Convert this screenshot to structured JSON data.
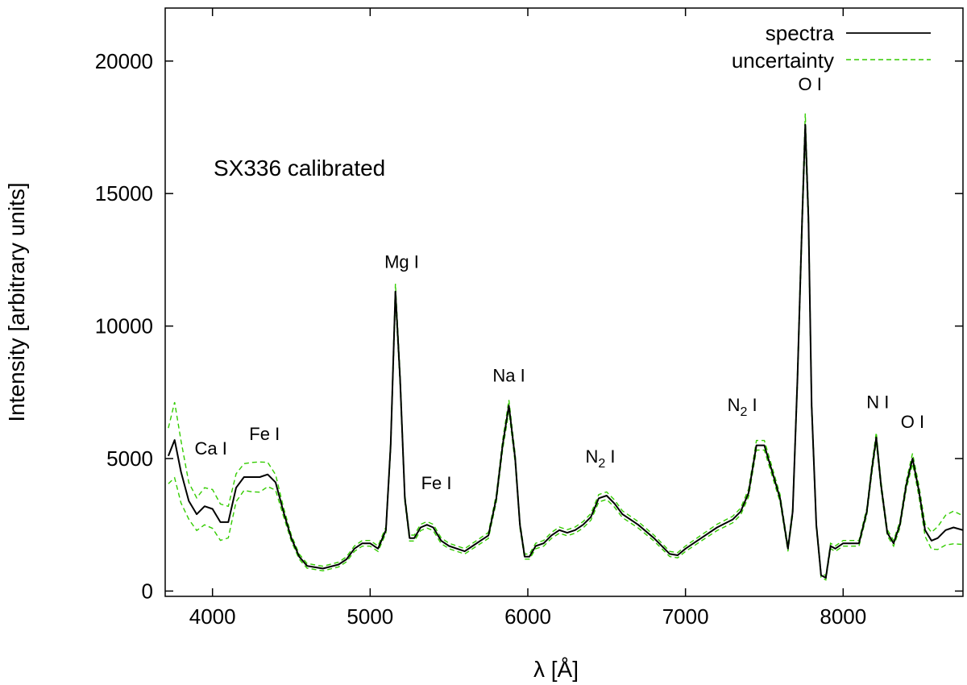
{
  "chart_data": {
    "type": "line",
    "title": "SX336 calibrated",
    "xlabel": "λ [Å]",
    "ylabel": "Intensity [arbitrary units]",
    "xlim": [
      3700,
      8760
    ],
    "ylim": [
      -200,
      22000
    ],
    "xticks": [
      4000,
      5000,
      6000,
      7000,
      8000
    ],
    "yticks": [
      0,
      5000,
      10000,
      15000,
      20000
    ],
    "grid": false,
    "legend_position": "top-right",
    "series": [
      {
        "name": "spectra",
        "color": "#000000",
        "style": "solid",
        "x": [
          3720,
          3760,
          3800,
          3850,
          3900,
          3950,
          4000,
          4050,
          4100,
          4150,
          4200,
          4250,
          4300,
          4350,
          4400,
          4450,
          4500,
          4550,
          4600,
          4700,
          4800,
          4850,
          4900,
          4950,
          5000,
          5050,
          5100,
          5130,
          5160,
          5190,
          5220,
          5250,
          5280,
          5320,
          5360,
          5400,
          5450,
          5500,
          5550,
          5600,
          5650,
          5700,
          5750,
          5800,
          5840,
          5880,
          5920,
          5950,
          5980,
          6010,
          6050,
          6100,
          6150,
          6200,
          6250,
          6300,
          6350,
          6400,
          6450,
          6500,
          6550,
          6600,
          6650,
          6700,
          6800,
          6900,
          6950,
          7000,
          7100,
          7200,
          7300,
          7350,
          7400,
          7450,
          7500,
          7550,
          7600,
          7650,
          7680,
          7710,
          7740,
          7760,
          7780,
          7800,
          7830,
          7860,
          7890,
          7920,
          7950,
          8000,
          8050,
          8100,
          8150,
          8180,
          8210,
          8240,
          8280,
          8320,
          8360,
          8400,
          8440,
          8480,
          8520,
          8560,
          8600,
          8650,
          8700,
          8760
        ],
        "y": [
          5100,
          5700,
          4500,
          3400,
          2900,
          3200,
          3100,
          2600,
          2600,
          3900,
          4300,
          4300,
          4300,
          4400,
          4100,
          3000,
          2000,
          1300,
          950,
          850,
          1000,
          1200,
          1600,
          1800,
          1800,
          1600,
          2300,
          5500,
          11300,
          8000,
          3500,
          2000,
          2000,
          2400,
          2500,
          2400,
          1900,
          1700,
          1600,
          1500,
          1700,
          1900,
          2100,
          3500,
          5500,
          7000,
          5000,
          2500,
          1300,
          1300,
          1700,
          1800,
          2100,
          2300,
          2200,
          2300,
          2500,
          2800,
          3500,
          3600,
          3300,
          2900,
          2700,
          2500,
          2000,
          1400,
          1350,
          1600,
          2000,
          2400,
          2700,
          3000,
          3700,
          5500,
          5500,
          4500,
          3500,
          1600,
          3000,
          8000,
          14000,
          17600,
          14000,
          7000,
          2500,
          600,
          500,
          1700,
          1600,
          1800,
          1800,
          1800,
          3000,
          4500,
          5800,
          4000,
          2200,
          1800,
          2500,
          4000,
          5000,
          3800,
          2300,
          1900,
          2000,
          2300,
          2400,
          2300
        ]
      },
      {
        "name": "uncertainty",
        "color": "#33cc00",
        "style": "dashed"
      }
    ],
    "annotations": [
      {
        "text": "Ca I",
        "x": 3990,
        "y": 5150
      },
      {
        "text": "Fe I",
        "x": 4330,
        "y": 5700
      },
      {
        "text": "Mg I",
        "x": 5200,
        "y": 12200
      },
      {
        "text": "Fe I",
        "x": 5420,
        "y": 3850
      },
      {
        "text": "Na I",
        "x": 5880,
        "y": 7900
      },
      {
        "text": "N",
        "sub": "2",
        "suffix": " I",
        "x": 6460,
        "y": 4850
      },
      {
        "text": "N",
        "sub": "2",
        "suffix": " I",
        "x": 7360,
        "y": 6800
      },
      {
        "text": "O I",
        "x": 7790,
        "y": 18900
      },
      {
        "text": "N I",
        "x": 8220,
        "y": 6900
      },
      {
        "text": "O I",
        "x": 8440,
        "y": 6150
      }
    ]
  }
}
